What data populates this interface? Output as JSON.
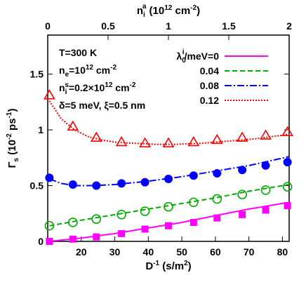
{
  "chart_data": {
    "type": "line",
    "x_range": [
      10,
      82
    ],
    "y_range": [
      0,
      1.85
    ],
    "x_ticks": [
      20,
      30,
      40,
      50,
      60,
      70,
      80
    ],
    "y_ticks": [
      0,
      0.5,
      1,
      1.5
    ],
    "y_tick_labels": [
      "0",
      "0.5",
      "1",
      "1.5"
    ],
    "x2_ticks": [
      0,
      0.5,
      1,
      1.5,
      2
    ],
    "x2_tick_labels": [
      "0",
      "0.5",
      "1",
      "1.5",
      "2"
    ],
    "xlabel": {
      "main": "D",
      "sup": "-1",
      "rest": " (s/m",
      "sup2": "2",
      "end": ")"
    },
    "ylabel": {
      "main": "Γ",
      "sub": "s",
      "rest": " (10",
      "sup": "-2",
      "rest2": " ps",
      "sup2": "-1",
      "end": ")"
    },
    "x2label": {
      "main": "n",
      "sub": "i",
      "sup": "a",
      "rest": " (10",
      "sup2": "12",
      "rest2": " cm",
      "sup3": "-2",
      "end": ")"
    },
    "annotations": {
      "line1": "T=300 K",
      "line2": {
        "main": "n",
        "sub": "e",
        "rest": "=10",
        "sup": "12",
        "rest2": " cm",
        "sup2": "-2"
      },
      "line3": {
        "main": "n",
        "sub": "i",
        "sup": "s",
        "rest": "=0.2×10",
        "sup2": "12",
        "rest2": " cm",
        "sup3": "-2"
      },
      "line4": "δ=5 meV, ξ=0.5 nm"
    },
    "legend_title": {
      "main": "λ",
      "sub": "0",
      "sup": "i",
      "rest": "/meV="
    },
    "series": [
      {
        "name": "0",
        "color": "#ff00ff",
        "dash": "",
        "marker": "square",
        "points_x": [
          10.5,
          17.5,
          24.5,
          32,
          39,
          46,
          53.5,
          60.5,
          68,
          75,
          81.5
        ],
        "points_y": [
          0.0,
          0.02,
          0.04,
          0.07,
          0.11,
          0.14,
          0.17,
          0.21,
          0.24,
          0.28,
          0.32
        ],
        "curve_x": [
          10.5,
          20,
          30,
          40,
          50,
          60,
          70,
          82
        ],
        "curve_y": [
          0.0,
          0.03,
          0.07,
          0.12,
          0.17,
          0.23,
          0.29,
          0.35
        ]
      },
      {
        "name": "0.04",
        "color": "#00aa00",
        "dash": "7,4",
        "marker": "circle-open",
        "points_x": [
          10.5,
          17.5,
          24.5,
          32,
          39,
          46,
          53.5,
          60.5,
          68,
          75,
          81.5
        ],
        "points_y": [
          0.14,
          0.17,
          0.2,
          0.24,
          0.27,
          0.31,
          0.35,
          0.38,
          0.42,
          0.46,
          0.49
        ],
        "curve_x": [
          10.5,
          20,
          30,
          40,
          50,
          60,
          70,
          82
        ],
        "curve_y": [
          0.14,
          0.19,
          0.24,
          0.29,
          0.34,
          0.39,
          0.45,
          0.51
        ]
      },
      {
        "name": "0.08",
        "color": "#0000ff",
        "dash": "10,3,2,3",
        "marker": "circle-filled",
        "points_x": [
          10.5,
          17.5,
          24.5,
          32,
          39,
          46,
          53.5,
          60.5,
          68,
          75,
          81.5
        ],
        "points_y": [
          0.57,
          0.51,
          0.5,
          0.52,
          0.53,
          0.56,
          0.59,
          0.61,
          0.64,
          0.68,
          0.71
        ],
        "curve_x": [
          10.5,
          14,
          18,
          24,
          30,
          40,
          50,
          60,
          70,
          82
        ],
        "curve_y": [
          0.56,
          0.52,
          0.5,
          0.5,
          0.51,
          0.54,
          0.58,
          0.63,
          0.68,
          0.76
        ]
      },
      {
        "name": "0.12",
        "color": "#ff0000",
        "dash": "2,2",
        "marker": "triangle-open",
        "points_x": [
          10.5,
          17.5,
          24.5,
          32,
          39,
          46,
          53.5,
          60.5,
          68,
          75,
          81.5
        ],
        "points_y": [
          1.31,
          1.03,
          0.93,
          0.89,
          0.88,
          0.88,
          0.89,
          0.91,
          0.93,
          0.95,
          0.98
        ],
        "curve_x": [
          10.5,
          14,
          18,
          22,
          26,
          30,
          36,
          42,
          48,
          56,
          64,
          72,
          82
        ],
        "curve_y": [
          1.26,
          1.1,
          1.0,
          0.94,
          0.91,
          0.89,
          0.88,
          0.87,
          0.87,
          0.88,
          0.9,
          0.92,
          0.96
        ]
      }
    ]
  }
}
